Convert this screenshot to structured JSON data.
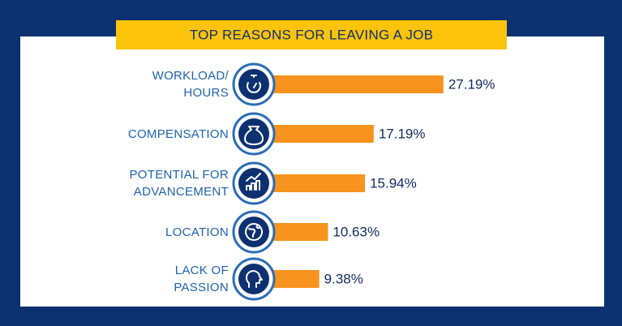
{
  "chart_data": {
    "type": "bar",
    "orientation": "horizontal",
    "title": "TOP REASONS FOR LEAVING A JOB",
    "categories": [
      "WORKLOAD/\nHOURS",
      "COMPENSATION",
      "POTENTIAL FOR\nADVANCEMENT",
      "LOCATION",
      "LACK OF\nPASSION"
    ],
    "values": [
      27.19,
      17.19,
      15.94,
      10.63,
      9.38
    ],
    "value_labels": [
      "27.19%",
      "17.19%",
      "15.94%",
      "10.63%",
      "9.38%"
    ],
    "color": "#f7931e"
  }
}
